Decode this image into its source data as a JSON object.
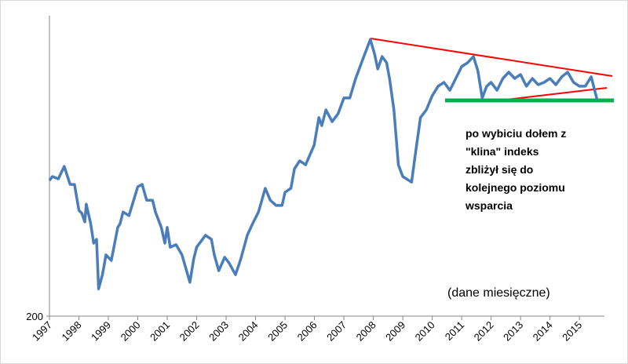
{
  "chart_data": {
    "type": "line",
    "log_scale": true,
    "annotation": [
      "po wybiciu dołem z",
      "\"klina\" indeks",
      "zbliżył się do",
      "kolejnego poziomu",
      "wsparcia"
    ],
    "note": "(dane miesięczne)",
    "xlim": [
      1997,
      2015.85
    ],
    "xticks": [
      1997,
      1998,
      1999,
      2000,
      2001,
      2002,
      2003,
      2004,
      2005,
      2006,
      2007,
      2008,
      2009,
      2010,
      2011,
      2012,
      2013,
      2014,
      2015
    ],
    "ylim": [
      200,
      2000
    ],
    "yticks": [
      200
    ],
    "x": [
      1997.0,
      1997.1,
      1997.3,
      1997.5,
      1997.7,
      1997.85,
      1998.0,
      1998.1,
      1998.2,
      1998.25,
      1998.4,
      1998.5,
      1998.6,
      1998.67,
      1998.8,
      1998.92,
      1999.1,
      1999.32,
      1999.4,
      1999.5,
      1999.7,
      2000.0,
      2000.15,
      2000.3,
      2000.5,
      2000.6,
      2000.8,
      2000.92,
      2001.0,
      2001.1,
      2001.3,
      2001.5,
      2001.77,
      2001.9,
      2002.0,
      2002.2,
      2002.3,
      2002.5,
      2002.6,
      2002.75,
      2002.95,
      2003.1,
      2003.32,
      2003.5,
      2003.72,
      2003.9,
      2004.1,
      2004.33,
      2004.5,
      2004.7,
      2004.9,
      2005.0,
      2005.2,
      2005.32,
      2005.5,
      2005.7,
      2005.99,
      2006.15,
      2006.25,
      2006.39,
      2006.6,
      2006.8,
      2007.0,
      2007.2,
      2007.4,
      2007.55,
      2007.7,
      2007.9,
      2008.05,
      2008.15,
      2008.3,
      2008.45,
      2008.55,
      2008.7,
      2008.85,
      2009.0,
      2009.3,
      2009.45,
      2009.6,
      2009.8,
      2010.0,
      2010.2,
      2010.4,
      2010.6,
      2010.8,
      2011.0,
      2011.2,
      2011.4,
      2011.55,
      2011.7,
      2011.85,
      2012.0,
      2012.2,
      2012.4,
      2012.6,
      2012.8,
      2013.0,
      2013.2,
      2013.4,
      2013.6,
      2013.8,
      2014.0,
      2014.2,
      2014.4,
      2014.6,
      2014.8,
      2015.0,
      2015.2,
      2015.4,
      2015.6
    ],
    "series": [
      {
        "color": "#4a7ebb",
        "values": [
          582,
          600,
          589,
          650,
          564,
          564,
          460,
          449,
          420,
          483,
          414,
          355,
          366,
          248,
          277,
          324,
          310,
          402,
          414,
          454,
          441,
          554,
          564,
          498,
          498,
          454,
          402,
          355,
          402,
          344,
          351,
          324,
          261,
          314,
          344,
          366,
          378,
          366,
          324,
          286,
          318,
          304,
          277,
          314,
          378,
          414,
          454,
          547,
          498,
          478,
          478,
          530,
          547,
          638,
          679,
          658,
          768,
          954,
          896,
          1014,
          924,
          983,
          1113,
          1113,
          1298,
          1425,
          1563,
          1766,
          1563,
          1399,
          1542,
          1469,
          1298,
          1014,
          658,
          600,
          574,
          745,
          954,
          1014,
          1133,
          1221,
          1259,
          1183,
          1298,
          1425,
          1469,
          1542,
          1381,
          1113,
          1221,
          1259,
          1183,
          1298,
          1364,
          1298,
          1339,
          1221,
          1298,
          1236,
          1259,
          1298,
          1236,
          1315,
          1364,
          1259,
          1221,
          1221,
          1315,
          1099
        ]
      }
    ]
  }
}
